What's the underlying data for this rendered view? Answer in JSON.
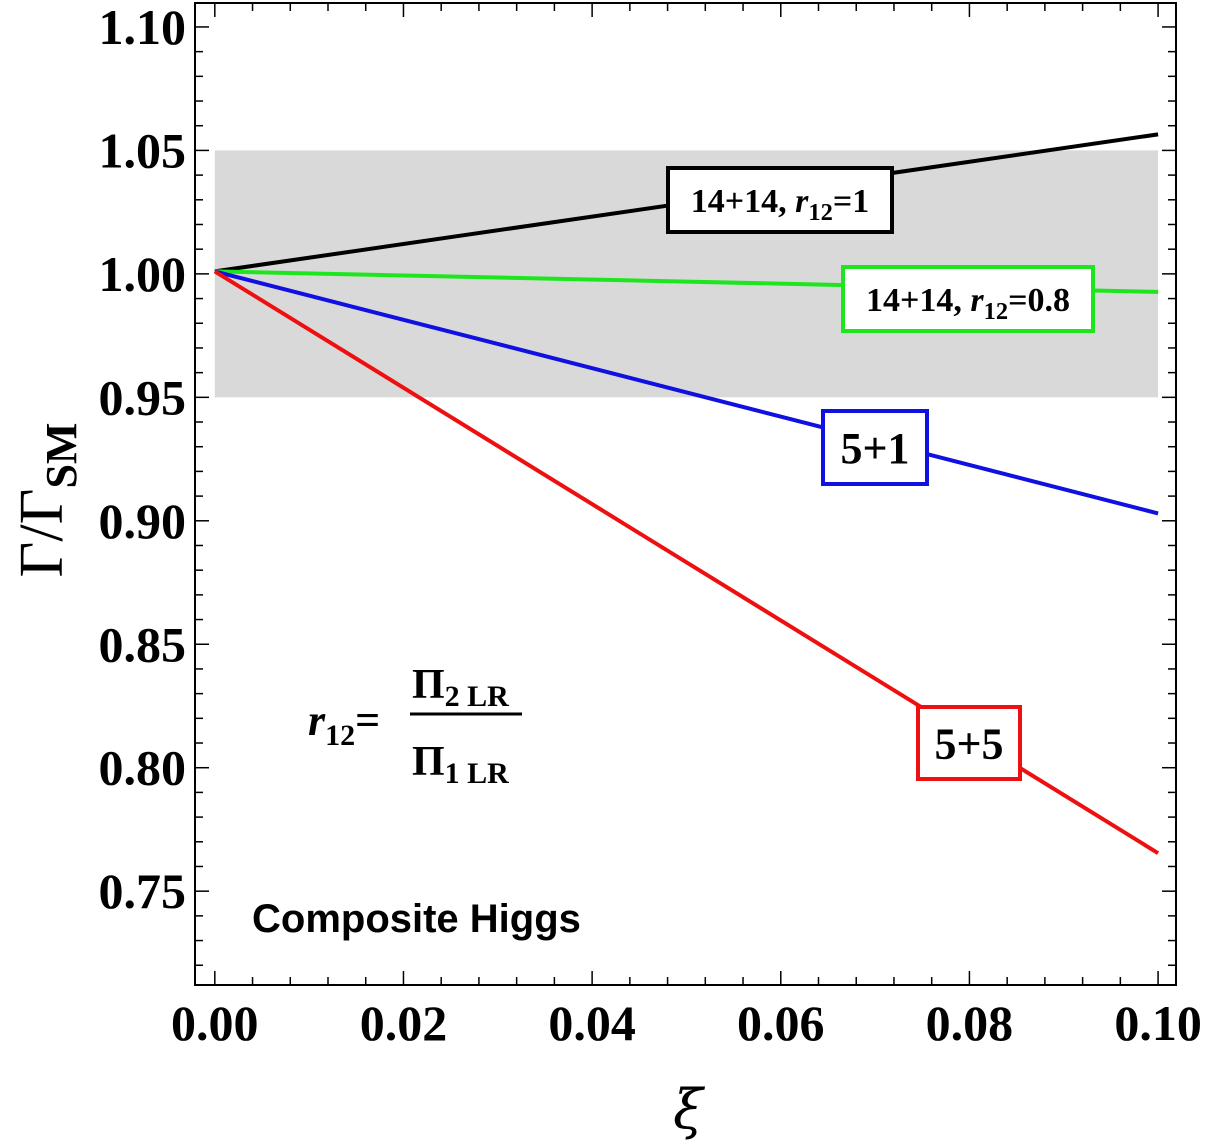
{
  "chart_data": {
    "type": "line",
    "title": "",
    "xlabel": "ξ",
    "ylabel": "Γ/Γ",
    "ylabel_sub": "SM",
    "xlim": [
      -0.0021,
      0.1019
    ],
    "ylim": [
      0.712,
      1.1097
    ],
    "xticks": [
      0.0,
      0.02,
      0.04,
      0.06,
      0.08,
      0.1
    ],
    "xtick_labels": [
      "0.00",
      "0.02",
      "0.04",
      "0.06",
      "0.08",
      "0.10"
    ],
    "yticks": [
      0.75,
      0.8,
      0.85,
      0.9,
      0.95,
      1.0,
      1.05,
      1.1
    ],
    "ytick_labels": [
      "0.75",
      "0.80",
      "0.85",
      "0.90",
      "0.95",
      "1.00",
      "1.05",
      "1.10"
    ],
    "grid": false,
    "band": {
      "x": [
        0,
        0.1
      ],
      "y": [
        0.95,
        1.05
      ],
      "color": "#d9d9d9"
    },
    "series": [
      {
        "name": "14+14, r12=1",
        "label_main": "14+14, ",
        "label_var": "r",
        "label_sub": "12",
        "label_tail": "=1",
        "color": "#000000",
        "x": [
          0,
          0.1
        ],
        "y": [
          1.001,
          1.0565
        ]
      },
      {
        "name": "14+14, r12=0.8",
        "label_main": "14+14, ",
        "label_var": "r",
        "label_sub": "12",
        "label_tail": "=0.8",
        "color": "#1ee61e",
        "x": [
          0,
          0.1
        ],
        "y": [
          1.001,
          0.9927
        ]
      },
      {
        "name": "5+1",
        "label_main": "5+1",
        "color": "#1010e0",
        "x": [
          0,
          0.1
        ],
        "y": [
          1.001,
          0.903
        ]
      },
      {
        "name": "5+5",
        "label_main": "5+5",
        "color": "#ee1010",
        "x": [
          0,
          0.1
        ],
        "y": [
          1.001,
          0.7654
        ]
      }
    ],
    "annotations": {
      "formula_lhs": "r",
      "formula_lhs_sub": "12",
      "formula_eq": "=",
      "numerator": "Π",
      "numerator_sub": "2 LR",
      "denominator": "Π",
      "denominator_sub": "1 LR",
      "caption": "Composite Higgs"
    }
  }
}
